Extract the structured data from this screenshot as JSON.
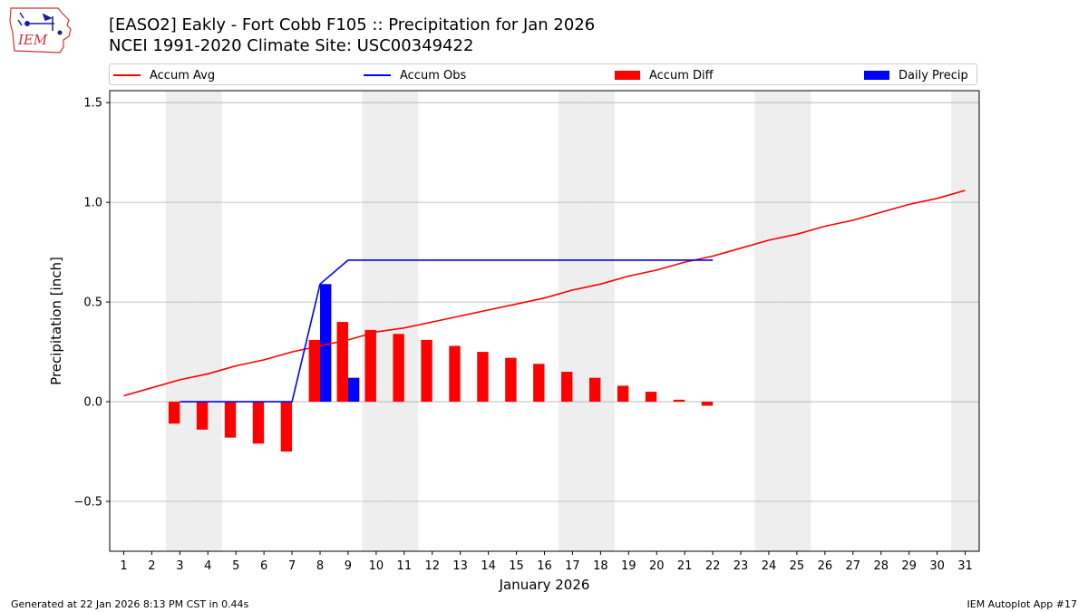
{
  "logo": {
    "text": "IEM"
  },
  "title": {
    "line1": "[EASO2] Eakly - Fort Cobb F105 :: Precipitation for Jan 2026",
    "line2": "NCEI 1991-2020 Climate Site: USC00349422"
  },
  "legend": {
    "accum_avg": "Accum Avg",
    "accum_obs": "Accum Obs",
    "accum_diff": "Accum Diff",
    "daily_precip": "Daily Precip"
  },
  "footer": {
    "left": "Generated at 22 Jan 2026 8:13 PM CST in 0.44s",
    "right": "IEM Autoplot App #17"
  },
  "colors": {
    "avg": "#ff0000",
    "obs": "#0000ff",
    "diff": "#ff0000",
    "daily": "#0000ff",
    "weekend_band": "#eeeeee",
    "grid": "#b0b0b0"
  },
  "chart_data": {
    "type": "bar",
    "title": "[EASO2] Eakly - Fort Cobb F105 :: Precipitation for Jan 2026",
    "xlabel": "January 2026",
    "ylabel": "Precipitation [inch]",
    "xlim": [
      0.5,
      31.5
    ],
    "ylim": [
      -0.75,
      1.56
    ],
    "yticks": [
      -0.5,
      0.0,
      0.5,
      1.0,
      1.5
    ],
    "ytick_labels": [
      "−0.5",
      "0.0",
      "0.5",
      "1.0",
      "1.5"
    ],
    "days": [
      1,
      2,
      3,
      4,
      5,
      6,
      7,
      8,
      9,
      10,
      11,
      12,
      13,
      14,
      15,
      16,
      17,
      18,
      19,
      20,
      21,
      22,
      23,
      24,
      25,
      26,
      27,
      28,
      29,
      30,
      31
    ],
    "weekend_days": [
      3,
      4,
      10,
      11,
      17,
      18,
      24,
      25,
      31
    ],
    "grid": "horizontal",
    "legend_position": "top",
    "series": [
      {
        "name": "Accum Avg",
        "kind": "line",
        "x": [
          1,
          2,
          3,
          4,
          5,
          6,
          7,
          8,
          9,
          10,
          11,
          12,
          13,
          14,
          15,
          16,
          17,
          18,
          19,
          20,
          21,
          22,
          23,
          24,
          25,
          26,
          27,
          28,
          29,
          30,
          31
        ],
        "values": [
          0.03,
          0.07,
          0.11,
          0.14,
          0.18,
          0.21,
          0.25,
          0.28,
          0.31,
          0.35,
          0.37,
          0.4,
          0.43,
          0.46,
          0.49,
          0.52,
          0.56,
          0.59,
          0.63,
          0.66,
          0.7,
          0.73,
          0.77,
          0.81,
          0.84,
          0.88,
          0.91,
          0.95,
          0.99,
          1.02,
          1.06
        ]
      },
      {
        "name": "Accum Obs",
        "kind": "line",
        "x": [
          3,
          4,
          5,
          6,
          7,
          8,
          9,
          10,
          11,
          12,
          13,
          14,
          15,
          16,
          17,
          18,
          19,
          20,
          21,
          22
        ],
        "values": [
          0.0,
          0.0,
          0.0,
          0.0,
          0.0,
          0.59,
          0.71,
          0.71,
          0.71,
          0.71,
          0.71,
          0.71,
          0.71,
          0.71,
          0.71,
          0.71,
          0.71,
          0.71,
          0.71,
          0.71
        ]
      },
      {
        "name": "Accum Diff",
        "kind": "bar",
        "x": [
          3,
          4,
          5,
          6,
          7,
          8,
          9,
          10,
          11,
          12,
          13,
          14,
          15,
          16,
          17,
          18,
          19,
          20,
          21,
          22
        ],
        "values": [
          -0.11,
          -0.14,
          -0.18,
          -0.21,
          -0.25,
          0.31,
          0.4,
          0.36,
          0.34,
          0.31,
          0.28,
          0.25,
          0.22,
          0.19,
          0.15,
          0.12,
          0.08,
          0.05,
          0.01,
          -0.02
        ]
      },
      {
        "name": "Daily Precip",
        "kind": "bar",
        "x": [
          8,
          9
        ],
        "values": [
          0.59,
          0.12
        ]
      }
    ]
  }
}
